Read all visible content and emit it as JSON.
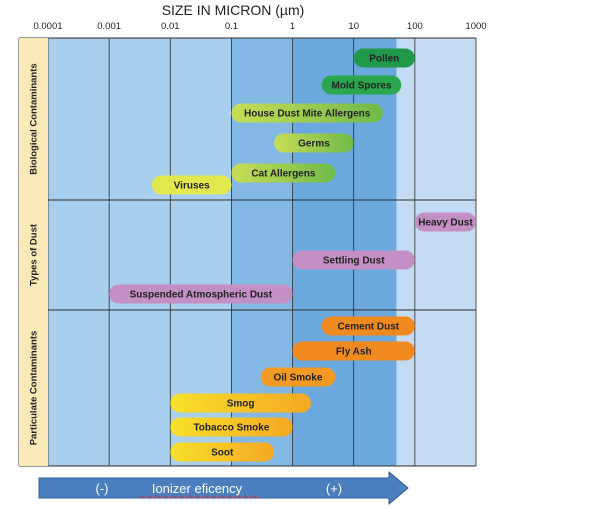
{
  "chart_data": {
    "type": "bar",
    "title": "SIZE IN MICRON (µm)",
    "x_scale": "log",
    "xlim": [
      0.0001,
      1000
    ],
    "x_ticks": [
      "0.0001",
      "0.001",
      "0.01",
      "0.1",
      "1",
      "10",
      "100",
      "1000"
    ],
    "groups": [
      {
        "name": "Biological Contaminants",
        "bars": [
          {
            "label": "Pollen",
            "from": 10,
            "to": 100,
            "color": "#1e9a4a"
          },
          {
            "label": "Mold Spores",
            "from": 3,
            "to": 60,
            "color": "#2aa64e"
          },
          {
            "label": "House Dust Mite Allergens",
            "from": 0.1,
            "to": 30,
            "color": "#8cc63f"
          },
          {
            "label": "Germs",
            "from": 0.5,
            "to": 10,
            "color": "#a6d04e"
          },
          {
            "label": "Cat Allergens",
            "from": 0.1,
            "to": 5,
            "color": "#b6d655"
          },
          {
            "label": "Viruses",
            "from": 0.005,
            "to": 0.1,
            "color": "#e2e84e"
          }
        ]
      },
      {
        "name": "Types of Dust",
        "bars": [
          {
            "label": "Heavy Dust",
            "from": 100,
            "to": 1000,
            "color": "#c48fc4"
          },
          {
            "label": "Settling Dust",
            "from": 1,
            "to": 100,
            "color": "#c48fc4"
          },
          {
            "label": "Suspended Atmospheric Dust",
            "from": 0.001,
            "to": 1,
            "color": "#c48fc4"
          }
        ]
      },
      {
        "name": "Particulate Contaminants",
        "bars": [
          {
            "label": "Cement Dust",
            "from": 3,
            "to": 100,
            "color": "#f08a1e"
          },
          {
            "label": "Fly Ash",
            "from": 1,
            "to": 100,
            "color": "#f08a1e"
          },
          {
            "label": "Oil Smoke",
            "from": 0.3,
            "to": 5,
            "color": "#f29a22"
          },
          {
            "label": "Smog",
            "from": 0.01,
            "to": 2,
            "color": "#f7c31a"
          },
          {
            "label": "Tobacco Smoke",
            "from": 0.01,
            "to": 1,
            "color": "#f5ae1c"
          },
          {
            "label": "Soot",
            "from": 0.01,
            "to": 0.5,
            "color": "#f7c31a"
          }
        ]
      }
    ],
    "bands": [
      {
        "from": 0.0001,
        "to": 0.1,
        "color": "#a9cfee"
      },
      {
        "from": 0.1,
        "to": 1,
        "color": "#84b8e4"
      },
      {
        "from": 1,
        "to": 50,
        "color": "#6ba8de"
      },
      {
        "from": 50,
        "to": 1000,
        "color": "#c3dcf3"
      }
    ],
    "grid": true,
    "arrow": {
      "left_label": "(-)",
      "center_label": "Ionizer eficency",
      "right_label": "(+)",
      "color": "#4a7ebf"
    }
  }
}
